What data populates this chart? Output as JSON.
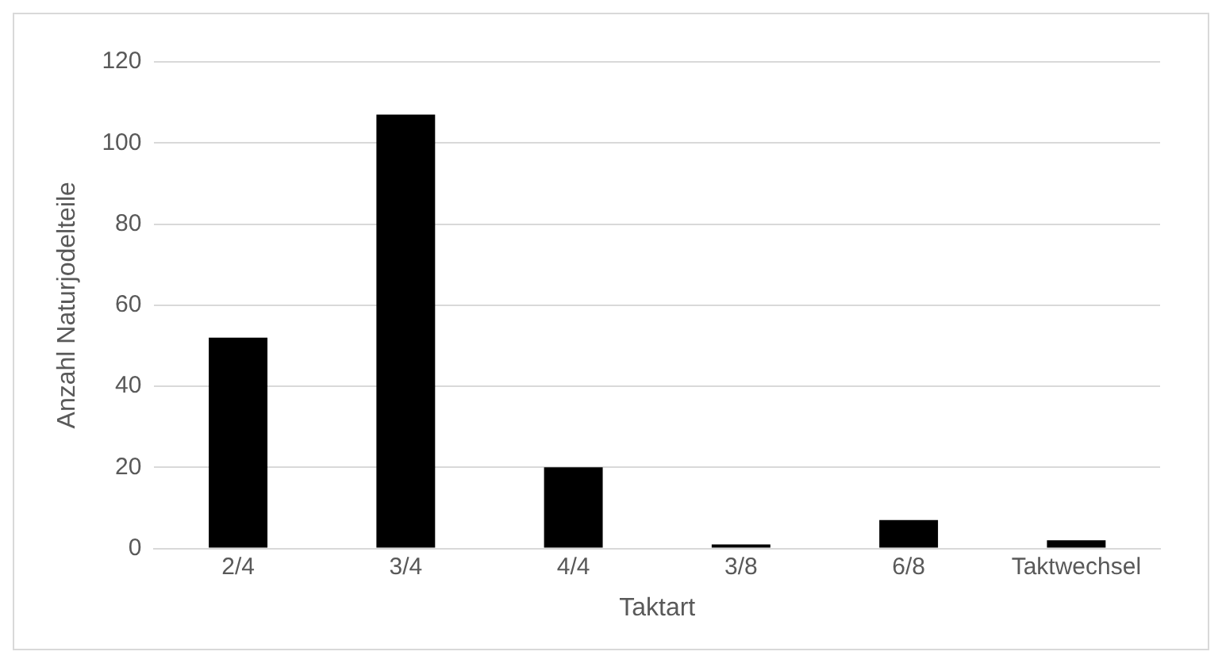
{
  "chart_data": {
    "type": "bar",
    "xlabel": "Taktart",
    "ylabel": "Anzahl Naturjodelteile",
    "categories": [
      "2/4",
      "3/4",
      "4/4",
      "3/8",
      "6/8",
      "Taktwechsel"
    ],
    "values": [
      52,
      107,
      20,
      1,
      7,
      2
    ],
    "color": "#000000",
    "ylim": [
      0,
      120
    ],
    "yticks": [
      0,
      20,
      40,
      60,
      80,
      100,
      120
    ],
    "grid": "y"
  }
}
